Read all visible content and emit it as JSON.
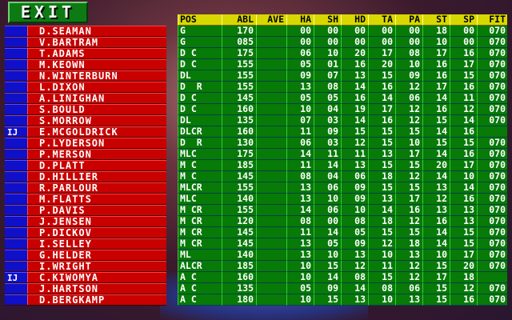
{
  "exit_label": "EXIT",
  "columns": [
    "POS",
    "ABL",
    "AVE",
    "HA",
    "SH",
    "HD",
    "TA",
    "PA",
    "ST",
    "SP",
    "FIT"
  ],
  "players": [
    {
      "tag": "",
      "name": "D.SEAMAN",
      "stats": [
        "G",
        "170",
        "",
        "00",
        "00",
        "00",
        "00",
        "00",
        "18",
        "00",
        "070"
      ]
    },
    {
      "tag": "",
      "name": "V.BARTRAM",
      "stats": [
        "G",
        "085",
        "",
        "00",
        "00",
        "00",
        "00",
        "00",
        "10",
        "00",
        "070"
      ]
    },
    {
      "tag": "",
      "name": "T.ADAMS",
      "stats": [
        "D C",
        "175",
        "",
        "06",
        "10",
        "20",
        "17",
        "08",
        "17",
        "16",
        "070"
      ]
    },
    {
      "tag": "",
      "name": "M.KEOWN",
      "stats": [
        "D C",
        "155",
        "",
        "05",
        "01",
        "16",
        "20",
        "10",
        "16",
        "17",
        "070"
      ]
    },
    {
      "tag": "",
      "name": "N.WINTERBURN",
      "stats": [
        "DL",
        "155",
        "",
        "09",
        "07",
        "13",
        "15",
        "09",
        "16",
        "15",
        "070"
      ]
    },
    {
      "tag": "",
      "name": "L.DIXON",
      "stats": [
        "D  R",
        "155",
        "",
        "13",
        "08",
        "14",
        "16",
        "12",
        "17",
        "16",
        "070"
      ]
    },
    {
      "tag": "",
      "name": "A.LINIGHAN",
      "stats": [
        "D C",
        "145",
        "",
        "05",
        "05",
        "16",
        "14",
        "06",
        "14",
        "11",
        "070"
      ]
    },
    {
      "tag": "",
      "name": "S.BOULD",
      "stats": [
        "D C",
        "160",
        "",
        "10",
        "04",
        "19",
        "17",
        "12",
        "16",
        "12",
        "070"
      ]
    },
    {
      "tag": "",
      "name": "S.MORROW",
      "stats": [
        "DL",
        "135",
        "",
        "07",
        "03",
        "14",
        "16",
        "12",
        "15",
        "14",
        "070"
      ]
    },
    {
      "tag": "IJ",
      "name": "E.MCGOLDRICK",
      "stats": [
        "DLCR",
        "160",
        "",
        "11",
        "09",
        "15",
        "15",
        "15",
        "14",
        "16",
        ""
      ]
    },
    {
      "tag": "",
      "name": "P.LYDERSON",
      "stats": [
        "D  R",
        "130",
        "",
        "06",
        "03",
        "12",
        "15",
        "10",
        "15",
        "15",
        "070"
      ]
    },
    {
      "tag": "",
      "name": "P.MERSON",
      "stats": [
        "MLC",
        "175",
        "",
        "14",
        "11",
        "11",
        "13",
        "17",
        "14",
        "16",
        "070"
      ]
    },
    {
      "tag": "",
      "name": "D.PLATT",
      "stats": [
        "M C",
        "185",
        "",
        "11",
        "14",
        "13",
        "15",
        "15",
        "20",
        "17",
        "070"
      ]
    },
    {
      "tag": "",
      "name": "D.HILLIER",
      "stats": [
        "M C",
        "145",
        "",
        "08",
        "04",
        "06",
        "18",
        "12",
        "14",
        "10",
        "070"
      ]
    },
    {
      "tag": "",
      "name": "R.PARLOUR",
      "stats": [
        "MLCR",
        "155",
        "",
        "13",
        "06",
        "09",
        "15",
        "15",
        "13",
        "14",
        "070"
      ]
    },
    {
      "tag": "",
      "name": "M.FLATTS",
      "stats": [
        "MLC",
        "140",
        "",
        "13",
        "10",
        "09",
        "13",
        "17",
        "12",
        "16",
        "070"
      ]
    },
    {
      "tag": "",
      "name": "P.DAVIS",
      "stats": [
        "M CR",
        "155",
        "",
        "14",
        "06",
        "10",
        "14",
        "16",
        "13",
        "13",
        "070"
      ]
    },
    {
      "tag": "",
      "name": "J.JENSEN",
      "stats": [
        "M CR",
        "120",
        "",
        "08",
        "00",
        "08",
        "18",
        "12",
        "16",
        "13",
        "070"
      ]
    },
    {
      "tag": "",
      "name": "P.DICKOV",
      "stats": [
        "M CR",
        "145",
        "",
        "11",
        "14",
        "05",
        "15",
        "15",
        "14",
        "15",
        "070"
      ]
    },
    {
      "tag": "",
      "name": "I.SELLEY",
      "stats": [
        "M CR",
        "145",
        "",
        "13",
        "05",
        "09",
        "12",
        "18",
        "14",
        "15",
        "070"
      ]
    },
    {
      "tag": "",
      "name": "G.HELDER",
      "stats": [
        "ML",
        "140",
        "",
        "13",
        "10",
        "13",
        "10",
        "13",
        "10",
        "17",
        "070"
      ]
    },
    {
      "tag": "",
      "name": "I.WRIGHT",
      "stats": [
        "ALCR",
        "185",
        "",
        "10",
        "15",
        "12",
        "11",
        "12",
        "15",
        "20",
        "070"
      ]
    },
    {
      "tag": "IJ",
      "name": "C.KIWOMYA",
      "stats": [
        "A C",
        "160",
        "",
        "10",
        "14",
        "08",
        "15",
        "12",
        "17",
        "18",
        ""
      ]
    },
    {
      "tag": "",
      "name": "J.HARTSON",
      "stats": [
        "A C",
        "135",
        "",
        "05",
        "09",
        "14",
        "08",
        "06",
        "15",
        "12",
        "070"
      ]
    },
    {
      "tag": "",
      "name": "D.BERGKAMP",
      "stats": [
        "A C",
        "180",
        "",
        "10",
        "15",
        "13",
        "10",
        "13",
        "15",
        "16",
        "070"
      ]
    }
  ]
}
